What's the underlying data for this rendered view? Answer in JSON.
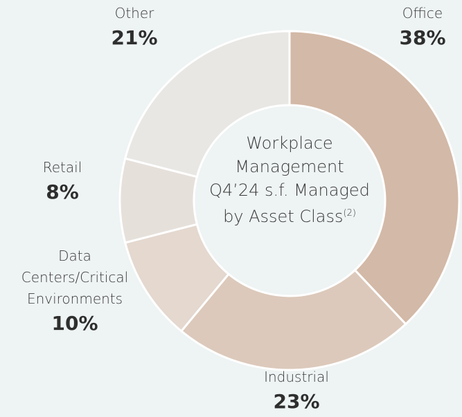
{
  "chart_data": {
    "type": "pie",
    "donut": true,
    "title": [
      "Workplace",
      "Management",
      "Q4’24 s.f. Managed",
      "by Asset Class"
    ],
    "title_superscript": "(2)",
    "categories": [
      "Office",
      "Industrial",
      "Data Centers/Critical Environments",
      "Retail",
      "Other"
    ],
    "values": [
      38,
      23,
      10,
      8,
      21
    ],
    "value_labels": [
      "38%",
      "23%",
      "10%",
      "8%",
      "21%"
    ],
    "colors": [
      "#d3b9a7",
      "#dcc9bb",
      "#e4d8cf",
      "#e6e0db",
      "#e8e7e4"
    ]
  }
}
